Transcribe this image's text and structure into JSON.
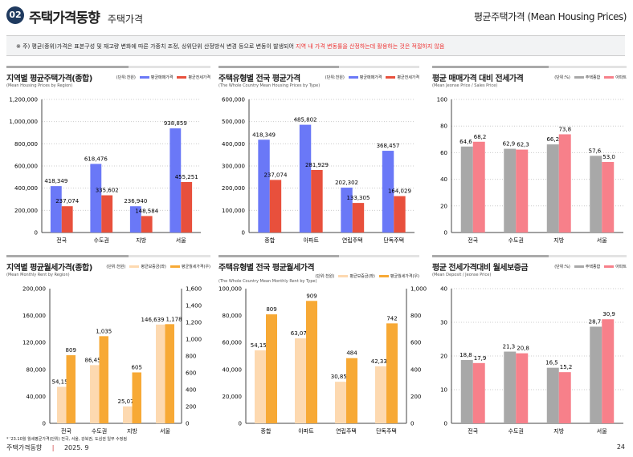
{
  "header": {
    "badge": "02",
    "title": "주택가격동향",
    "subtitle": "주택가격",
    "right_title": "평균주택가격 (Mean Housing Prices)"
  },
  "note": {
    "text": "※ 주) 평균(중위)가격은 표본구성 및 재고량 변화에 따른 가중치 조정, 상위단위 산정방식 변경 등으로 변동이 발생되어 ",
    "highlight": "지역 내 가격 변동률을 산정하는데 활용하는 것은 적절하지 않음",
    "highlight_color": "#e33333"
  },
  "footer": {
    "footnote": "* '23.10월 월세평균가격(단위) 전국, 서울, 강북권, 도심권 일부 수정됨",
    "publication": "주택가격동향",
    "separator": "|",
    "date": "2025. 9",
    "page": "24"
  },
  "chart_data": [
    {
      "type": "bar",
      "title": "지역별 평균주택가격(종합)",
      "subtitle": "(Mean Housing Prices by Region)",
      "unit": "(단위:천원)",
      "categories": [
        "전국",
        "수도권",
        "지방",
        "서울"
      ],
      "ylim": [
        0,
        1200000
      ],
      "yticks": [
        0,
        200000,
        400000,
        600000,
        800000,
        1000000,
        1200000
      ],
      "grid": true,
      "legend": "top-right",
      "series": [
        {
          "name": "평균매매가격",
          "color": "#6a78f7",
          "values": [
            418349,
            618476,
            236940,
            938859
          ]
        },
        {
          "name": "평균전세가격",
          "color": "#e8503c",
          "values": [
            237074,
            335602,
            148584,
            455251
          ]
        }
      ]
    },
    {
      "type": "bar",
      "title": "주택유형별 전국 평균가격",
      "subtitle": "(The Whole Country Mean Housing Prices by Type)",
      "unit": "(단위:천원)",
      "categories": [
        "종합",
        "아파트",
        "연립주택",
        "단독주택"
      ],
      "ylim": [
        0,
        600000
      ],
      "yticks": [
        0,
        100000,
        200000,
        300000,
        400000,
        500000,
        600000
      ],
      "grid": true,
      "legend": "top-right",
      "series": [
        {
          "name": "평균매매가격",
          "color": "#6a78f7",
          "values": [
            418349,
            485802,
            202302,
            368457
          ]
        },
        {
          "name": "평균전세가격",
          "color": "#e8503c",
          "values": [
            237074,
            281929,
            133305,
            164029
          ]
        }
      ]
    },
    {
      "type": "bar",
      "title": "평균 매매가격 대비 전세가격",
      "subtitle": "(Mean Jeonse Price / Sales Price)",
      "unit": "(단위:%)",
      "categories": [
        "전국",
        "수도권",
        "지방",
        "서울"
      ],
      "ylim": [
        0,
        100
      ],
      "yticks": [
        0,
        20,
        40,
        60,
        80,
        100
      ],
      "grid": true,
      "legend": "top-right",
      "series": [
        {
          "name": "주택종합",
          "color": "#a8a8a8",
          "values": [
            64.6,
            62.9,
            66.2,
            57.6
          ]
        },
        {
          "name": "아파트",
          "color": "#f7808a",
          "values": [
            68.2,
            62.3,
            73.8,
            53.0
          ]
        }
      ]
    },
    {
      "type": "bar",
      "title": "지역별 평균월세가격(종합)",
      "subtitle": "(Mean Monthly Rent by Region)",
      "unit": "(단위:천원)",
      "categories": [
        "전국",
        "수도권",
        "지방",
        "서울"
      ],
      "ylim": [
        0,
        200000
      ],
      "yticks": [
        0,
        40000,
        80000,
        120000,
        160000,
        200000
      ],
      "y2lim": [
        0,
        1600
      ],
      "y2ticks": [
        0,
        200,
        400,
        600,
        800,
        1000,
        1200,
        1400,
        1600
      ],
      "grid": false,
      "legend": "top-right",
      "series": [
        {
          "name": "평균보증금(좌)",
          "color": "#fdd9b0",
          "axis": "left",
          "values": [
            54158,
            86457,
            25078,
            146639
          ]
        },
        {
          "name": "평균월세가격(우)",
          "color": "#f7a935",
          "axis": "right",
          "values": [
            809,
            1035,
            605,
            1178
          ]
        }
      ]
    },
    {
      "type": "bar",
      "title": "주택유형별 전국 평균월세가격",
      "subtitle": "(The Whole Country Mean Monthly Rent by Type)",
      "unit": "(단위:천원)",
      "categories": [
        "종합",
        "아파트",
        "연립주택",
        "단독주택"
      ],
      "ylim": [
        0,
        100000
      ],
      "yticks": [
        0,
        20000,
        40000,
        60000,
        80000,
        100000
      ],
      "y2lim": [
        0,
        1000
      ],
      "y2ticks": [
        0,
        200,
        400,
        600,
        800,
        1000
      ],
      "grid": false,
      "legend": "top-right",
      "series": [
        {
          "name": "평균보증금(좌)",
          "color": "#fdd9b0",
          "axis": "left",
          "values": [
            54158,
            63070,
            30852,
            42332
          ]
        },
        {
          "name": "평균월세가격(우)",
          "color": "#f7a935",
          "axis": "right",
          "values": [
            809,
            909,
            484,
            742
          ]
        }
      ]
    },
    {
      "type": "bar",
      "title": "평균 전세가격대비 월세보증금",
      "subtitle": "(Mean Deposit / Jeonse Price)",
      "unit": "(단위:%)",
      "categories": [
        "전국",
        "수도권",
        "지방",
        "서울"
      ],
      "ylim": [
        0,
        40
      ],
      "yticks": [
        0,
        10,
        20,
        30,
        40
      ],
      "grid": true,
      "legend": "top-right",
      "series": [
        {
          "name": "주택종합",
          "color": "#a8a8a8",
          "values": [
            18.8,
            21.3,
            16.5,
            28.7
          ]
        },
        {
          "name": "아파트",
          "color": "#f7808a",
          "values": [
            17.9,
            20.8,
            15.2,
            30.9
          ]
        }
      ]
    }
  ]
}
